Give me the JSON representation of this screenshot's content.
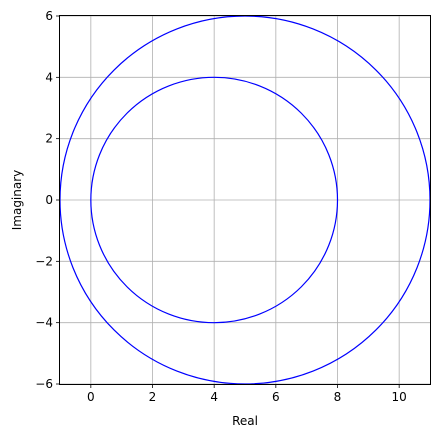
{
  "chart_data": {
    "type": "line",
    "xlabel": "Real",
    "ylabel": "Imaginary",
    "xlim": [
      -1,
      11
    ],
    "ylim": [
      -6,
      6
    ],
    "grid": true,
    "x_ticks": [
      0,
      2,
      4,
      6,
      8,
      10
    ],
    "y_ticks": [
      -6,
      -4,
      -2,
      0,
      2,
      4,
      6
    ],
    "x_tick_labels": [
      "0",
      "2",
      "4",
      "6",
      "8",
      "10"
    ],
    "y_tick_labels": [
      "−6",
      "−4",
      "−2",
      "0",
      "2",
      "4",
      "6"
    ],
    "series": [
      {
        "shape": "circle",
        "center": [
          4,
          0
        ],
        "radius": 4,
        "color": "#0000ff"
      },
      {
        "shape": "circle",
        "center": [
          5,
          0
        ],
        "radius": 6,
        "color": "#0000ff"
      }
    ],
    "colors": {
      "grid": "#b0b0b0",
      "axes": "#000000",
      "background": "#ffffff"
    }
  }
}
